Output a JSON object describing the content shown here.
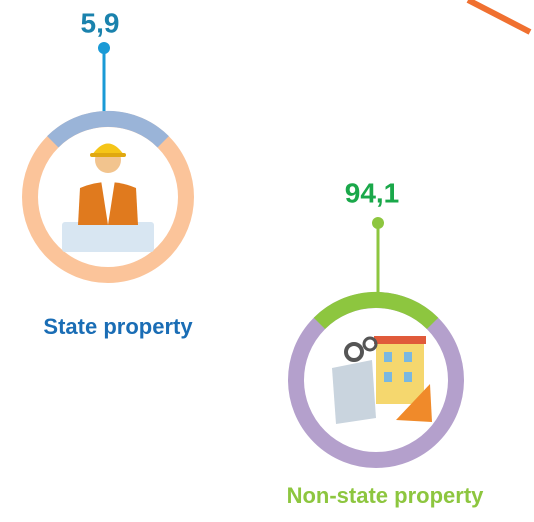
{
  "items": [
    {
      "value_label": "5,9",
      "label": "State property"
    },
    {
      "value_label": "94,1",
      "label": "Non-state property"
    }
  ]
}
